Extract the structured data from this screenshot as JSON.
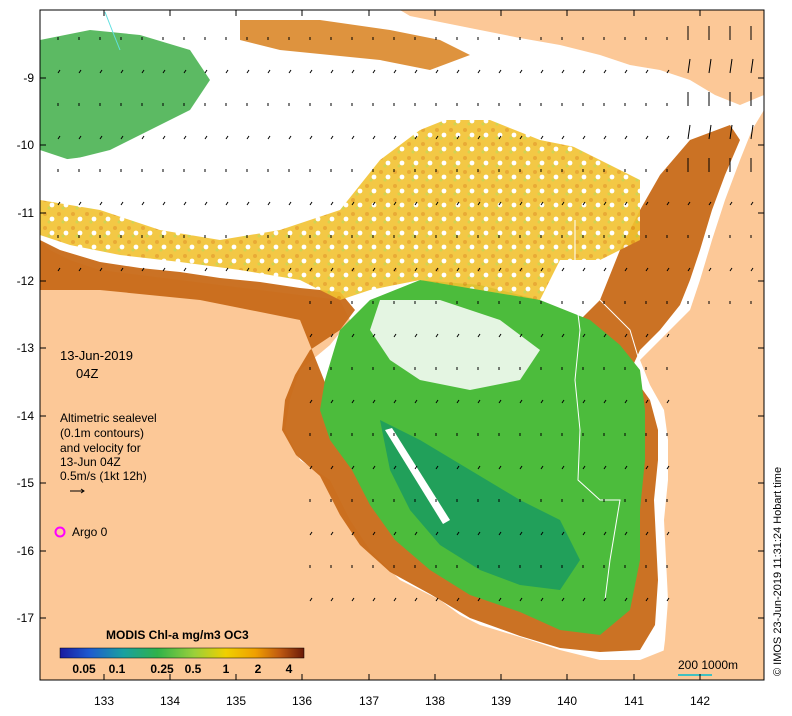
{
  "map": {
    "date": "13-Jun-2019",
    "time": "04Z",
    "legend_lines": [
      "Altimetric sealevel",
      "(0.1m contours)",
      "and velocity for",
      "13-Jun 04Z",
      "0.5m/s (1kt 12h)"
    ],
    "argo_label": "Argo 0",
    "colorbar_title": "MODIS Chl-a mg/m3 OC3",
    "colorbar_ticks": [
      "0.05",
      "0.1",
      "0.25",
      "0.5",
      "1",
      "2",
      "4"
    ],
    "scale_label": "200  1000m",
    "timestamp": "© IMOS 23-Jun-2019 11:31:24 Hobart time",
    "lat_ticks": [
      "-9",
      "-10",
      "-11",
      "-12",
      "-13",
      "-14",
      "-15",
      "-16",
      "-17"
    ],
    "lon_ticks": [
      "133",
      "134",
      "135",
      "136",
      "137",
      "138",
      "139",
      "140",
      "141",
      "142"
    ]
  },
  "colors": {
    "land": "#fcc897",
    "water_missing": "#ffffff",
    "chl_low": "#1a3fae",
    "chl_mid": "#2fb24a",
    "chl_high": "#f0b400",
    "chl_very_high": "#8a2a0a",
    "argo_marker": "#ff00ff",
    "scale_bar": "#40c0c0"
  }
}
